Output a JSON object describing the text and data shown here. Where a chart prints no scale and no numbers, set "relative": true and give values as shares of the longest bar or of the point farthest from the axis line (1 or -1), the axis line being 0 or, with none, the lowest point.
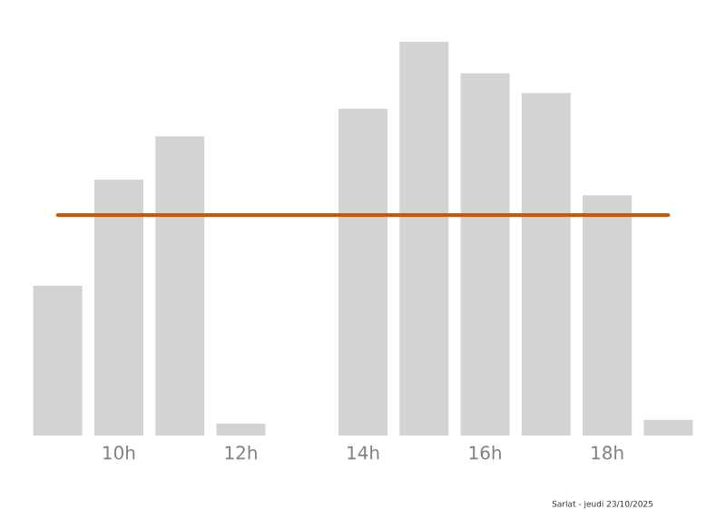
{
  "chart_data": {
    "type": "bar",
    "relative": true,
    "color": "#d3d3d3",
    "categories": [
      null,
      "10h",
      null,
      "12h",
      null,
      "14h",
      null,
      "16h",
      null,
      "18h",
      null
    ],
    "values": [
      0.38,
      0.65,
      0.76,
      0.03,
      0,
      0.83,
      1,
      0.92,
      0.87,
      0.61,
      0.04
    ],
    "ref_lines": [
      {
        "axis": "y",
        "value": 0.56,
        "color": "#d35400"
      }
    ],
    "annotations": [
      "Sarlat - jeudi 23/10/2025"
    ]
  }
}
